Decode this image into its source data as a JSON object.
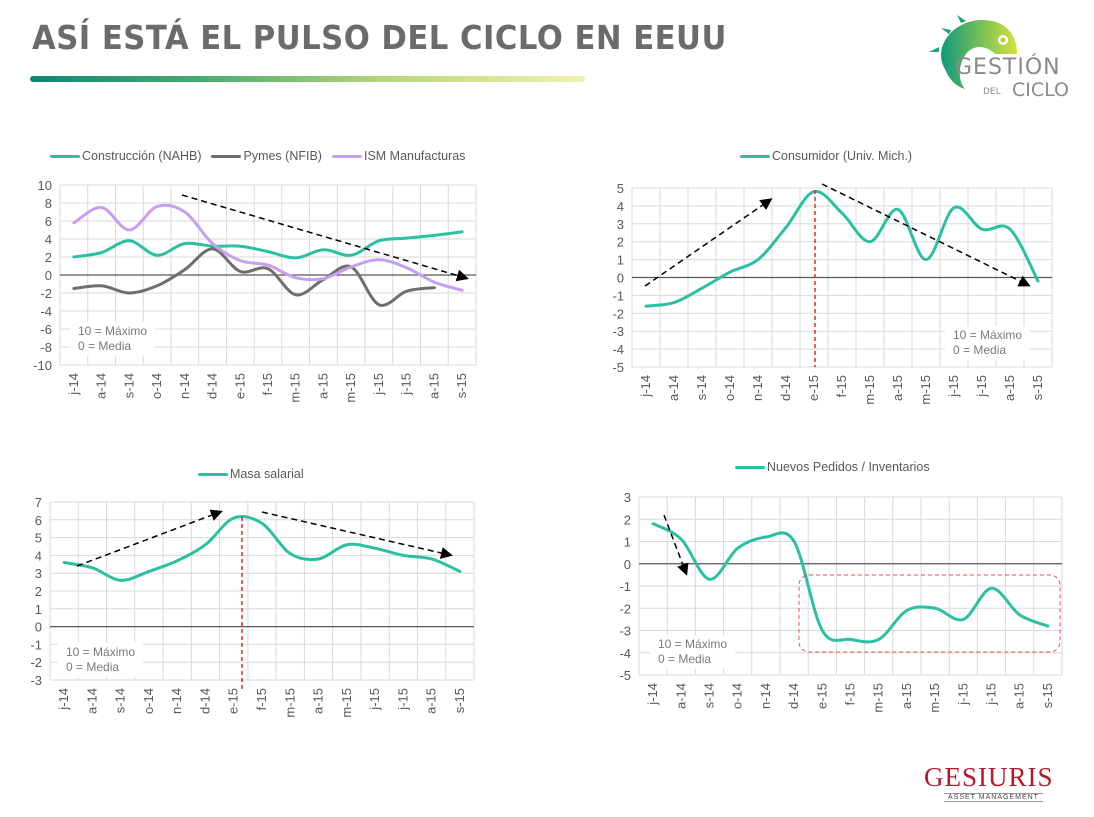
{
  "header": {
    "title": "ASÍ ESTÁ EL PULSO DEL CICLO EN EEUU",
    "logo_text": [
      "GESTIÓN",
      "DEL",
      "CICLO"
    ]
  },
  "footer": {
    "brand": "GESIURIS",
    "brand_sub": "ASSET MANAGEMENT"
  },
  "notes": {
    "line1": "10 = Máximo",
    "line2": "0 =  Media"
  },
  "colors": {
    "teal": "#2bbfa4",
    "gray": "#6e6e6e",
    "lilac": "#c79ef2",
    "red": "#e8262b"
  },
  "chart_data": [
    {
      "type": "line",
      "title": "",
      "categories": [
        "j-14",
        "a-14",
        "s-14",
        "o-14",
        "n-14",
        "d-14",
        "e-15",
        "f-15",
        "m-15",
        "a-15",
        "m-15",
        "j-15",
        "j-15",
        "a-15",
        "s-15"
      ],
      "ylim": [
        -10,
        10
      ],
      "yticks": [
        "10",
        "8",
        "6",
        "4",
        "2",
        "0",
        "-2",
        "-4",
        "-6",
        "-8",
        "-10"
      ],
      "legend_position": "top",
      "series": [
        {
          "name": "Construcción (NAHB)",
          "color": "#2bbfa4",
          "values": [
            2.0,
            2.5,
            3.8,
            2.2,
            3.5,
            3.2,
            3.2,
            2.6,
            1.9,
            2.8,
            2.2,
            3.8,
            4.1,
            4.4,
            4.8
          ]
        },
        {
          "name": "Pymes (NFIB)",
          "color": "#6e6e6e",
          "values": [
            -1.5,
            -1.2,
            -2.0,
            -1.2,
            0.6,
            2.9,
            0.4,
            0.7,
            -2.2,
            -0.5,
            0.9,
            -3.3,
            -1.8,
            -1.4,
            null
          ]
        },
        {
          "name": "ISM Manufacturas",
          "color": "#c79ef2",
          "values": [
            5.8,
            7.5,
            5.0,
            7.6,
            7.0,
            3.5,
            1.6,
            1.1,
            -0.3,
            -0.4,
            0.9,
            1.7,
            0.8,
            -0.8,
            -1.7
          ]
        }
      ]
    },
    {
      "type": "line",
      "title": "",
      "categories": [
        "j-14",
        "a-14",
        "s-14",
        "o-14",
        "n-14",
        "d-14",
        "e-15",
        "f-15",
        "m-15",
        "a-15",
        "m-15",
        "j-15",
        "j-15",
        "a-15",
        "s-15"
      ],
      "ylim": [
        -5,
        5
      ],
      "yticks": [
        "5",
        "4",
        "3",
        "2",
        "1",
        "0",
        "-1",
        "-2",
        "-3",
        "-4",
        "-5"
      ],
      "legend_position": "top",
      "series": [
        {
          "name": "Consumidor (Univ. Mich.)",
          "color": "#2bbfa4",
          "values": [
            -1.6,
            -1.4,
            -0.6,
            0.3,
            1.0,
            2.8,
            4.8,
            3.6,
            2.0,
            3.8,
            1.0,
            3.9,
            2.7,
            2.7,
            -0.2
          ]
        }
      ]
    },
    {
      "type": "line",
      "title": "",
      "categories": [
        "j-14",
        "a-14",
        "s-14",
        "o-14",
        "n-14",
        "d-14",
        "e-15",
        "f-15",
        "m-15",
        "a-15",
        "m-15",
        "j-15",
        "j-15",
        "a-15",
        "s-15"
      ],
      "ylim": [
        -3,
        7
      ],
      "yticks": [
        "7",
        "6",
        "5",
        "4",
        "3",
        "2",
        "1",
        "0",
        "-1",
        "-2",
        "-3"
      ],
      "legend_position": "top",
      "series": [
        {
          "name": "Masa salarial",
          "color": "#2bbfa4",
          "values": [
            3.6,
            3.3,
            2.6,
            3.1,
            3.7,
            4.6,
            6.1,
            5.8,
            4.1,
            3.8,
            4.6,
            4.4,
            4.0,
            3.8,
            3.1
          ]
        }
      ]
    },
    {
      "type": "line",
      "title": "",
      "categories": [
        "j-14",
        "a-14",
        "s-14",
        "o-14",
        "n-14",
        "d-14",
        "e-15",
        "f-15",
        "m-15",
        "a-15",
        "m-15",
        "j-15",
        "j-15",
        "a-15",
        "s-15"
      ],
      "ylim": [
        -5,
        3
      ],
      "yticks": [
        "3",
        "2",
        "1",
        "0",
        "-1",
        "-2",
        "-3",
        "-4",
        "-5"
      ],
      "legend_position": "top",
      "series": [
        {
          "name": "Nuevos Pedidos / Inventarios",
          "color": "#2bbfa4",
          "values": [
            1.8,
            1.1,
            -0.7,
            0.7,
            1.2,
            1.0,
            -3.0,
            -3.4,
            -3.4,
            -2.1,
            -2.0,
            -2.5,
            -1.1,
            -2.3,
            -2.8
          ]
        }
      ]
    }
  ]
}
